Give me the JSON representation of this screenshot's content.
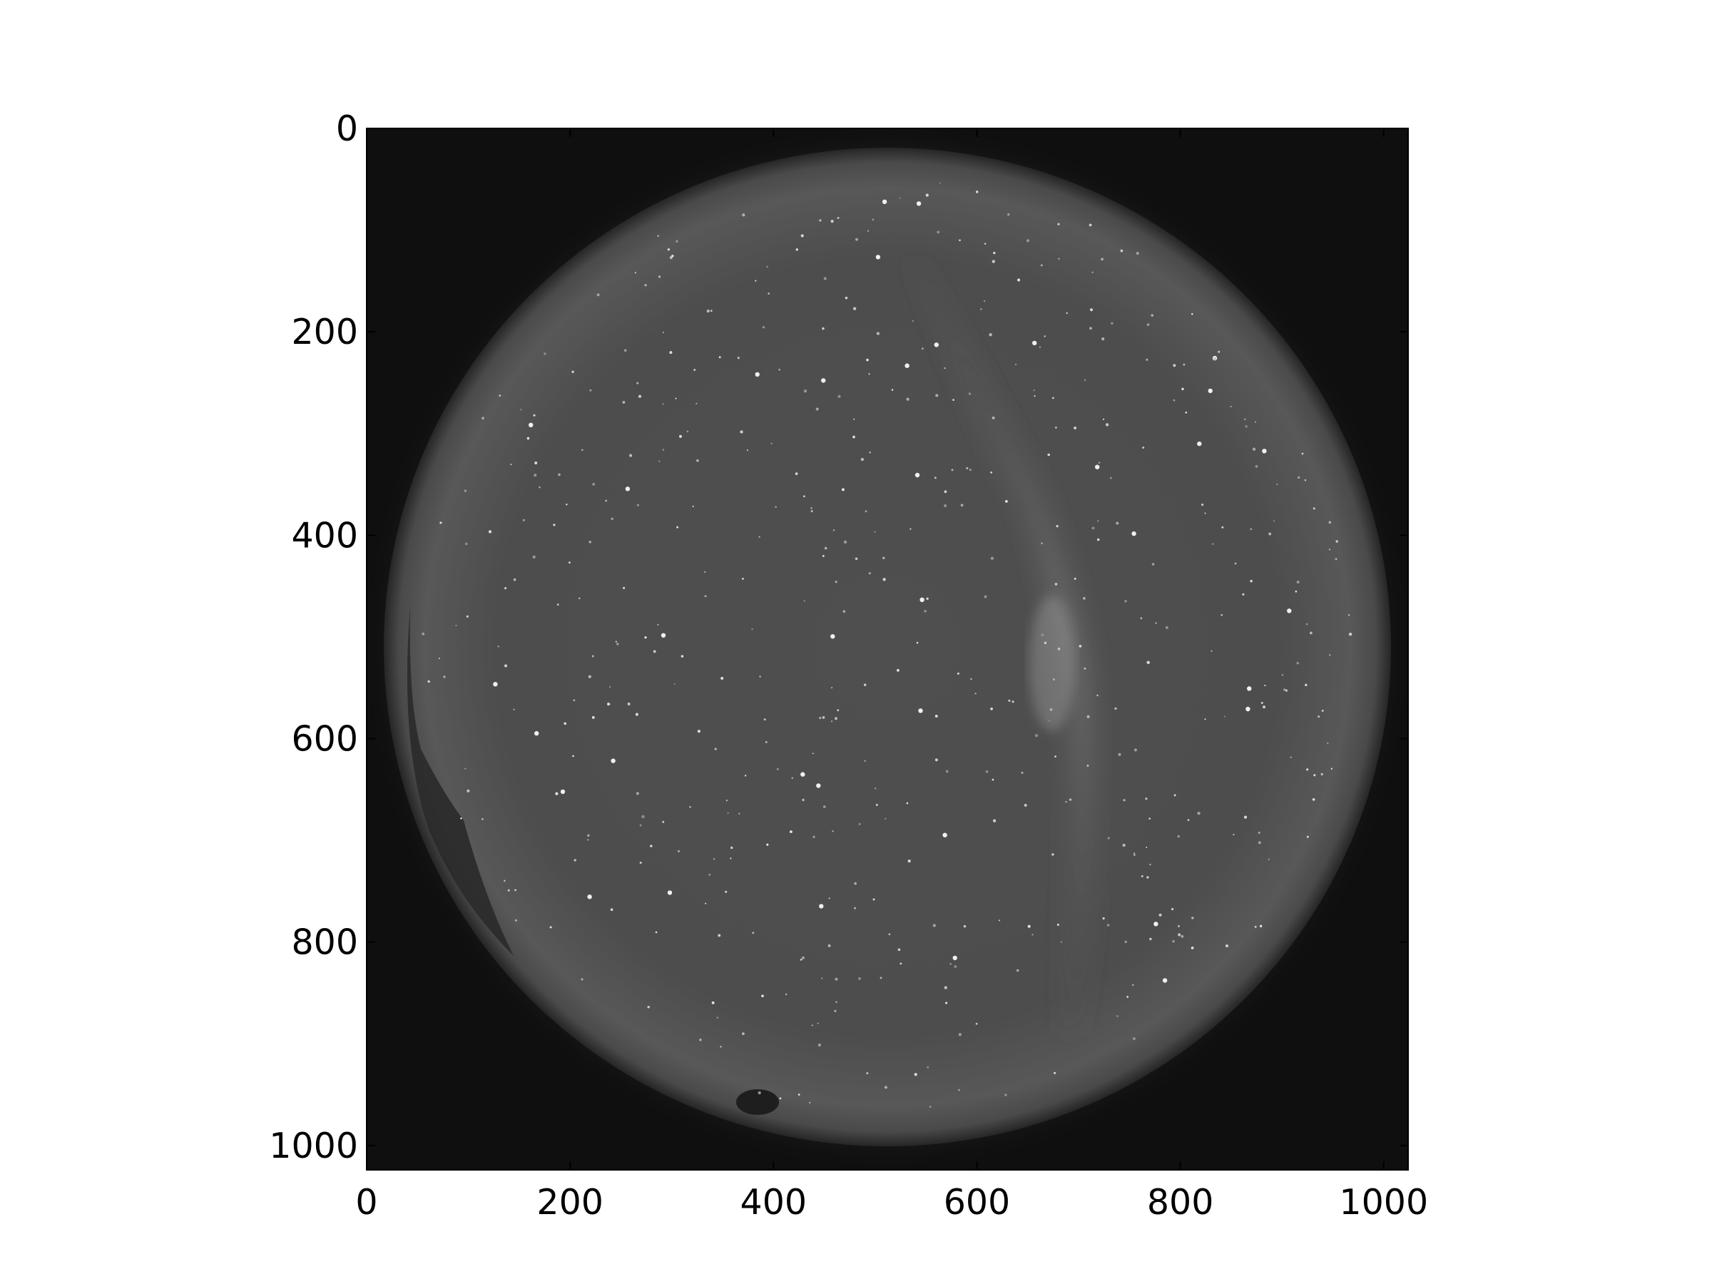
{
  "figure": {
    "background": "#ffffff",
    "frame_color": "#000000"
  },
  "image": {
    "description_type": "all-sky camera frame",
    "sky_color": "#4d4d4d",
    "background_color": "#0f0f0f"
  },
  "axes": {
    "x": {
      "lim": [
        0,
        1024
      ],
      "ticks": [
        0,
        200,
        400,
        600,
        800,
        1000
      ],
      "tick_labels": [
        "0",
        "200",
        "400",
        "600",
        "800",
        "1000"
      ],
      "inverted": false
    },
    "y": {
      "lim": [
        0,
        1024
      ],
      "ticks": [
        0,
        200,
        400,
        600,
        800,
        1000
      ],
      "tick_labels": [
        "0",
        "200",
        "400",
        "600",
        "800",
        "1000"
      ],
      "inverted": true
    }
  }
}
